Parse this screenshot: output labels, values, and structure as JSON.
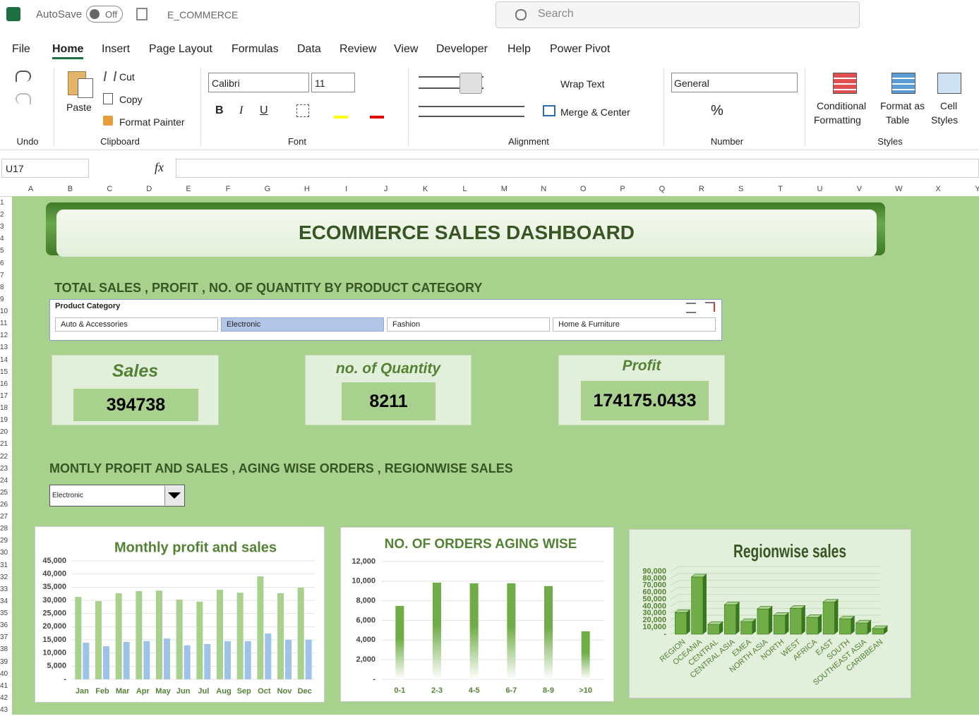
{
  "titlebar": {
    "autosave": "AutoSave",
    "autosave_state": "Off",
    "filename": "E_COMMERCE",
    "search": "Search"
  },
  "tabs": [
    "File",
    "Home",
    "Insert",
    "Page Layout",
    "Formulas",
    "Data",
    "Review",
    "View",
    "Developer",
    "Help",
    "Power Pivot"
  ],
  "ribbon": {
    "groups": [
      "Undo",
      "Clipboard",
      "Font",
      "Alignment",
      "Number",
      "Styles"
    ],
    "buttons": {
      "paste": "Paste",
      "cut": "Cut",
      "copy": "Copy",
      "format_painter": "Format Painter",
      "font": "Calibri",
      "font_size": "11",
      "bold": "B",
      "italic": "I",
      "underline": "U",
      "wrap_text": "Wrap Text",
      "merge_center": "Merge & Center",
      "number_format": "General",
      "percent": "%",
      "conditional_formatting": [
        "Conditional",
        "Formatting"
      ],
      "format_as_table": [
        "Format as",
        "Table"
      ],
      "cell_styles": [
        "Cell",
        "Styles"
      ]
    }
  },
  "formula_bar": {
    "name_box": "U17",
    "fx": "fx"
  },
  "columns": [
    "A",
    "B",
    "C",
    "D",
    "E",
    "F",
    "G",
    "H",
    "I",
    "J",
    "K",
    "L",
    "M",
    "N",
    "O",
    "P",
    "Q",
    "R",
    "S",
    "T",
    "U",
    "V",
    "W",
    "X",
    "Y"
  ],
  "rows": [
    "1",
    "2",
    "3",
    "4",
    "5",
    "6",
    "7",
    "8",
    "9",
    "10",
    "11",
    "12",
    "13",
    "14",
    "15",
    "16",
    "17",
    "18",
    "19",
    "20",
    "21",
    "22",
    "23",
    "24",
    "25",
    "26",
    "27",
    "28",
    "29",
    "30",
    "31",
    "32",
    "33",
    "34",
    "35",
    "36",
    "37",
    "38",
    "39",
    "40",
    "41",
    "42",
    "43"
  ],
  "dashboard": {
    "title": "ECOMMERCE SALES DASHBOARD",
    "section1": "TOTAL SALES , PROFIT , NO. OF QUANTITY BY PRODUCT CATEGORY",
    "slicer": {
      "title": "Product Category",
      "items": [
        "Auto & Accessories",
        "Electronic",
        "Fashion",
        "Home & Furniture"
      ],
      "selected_index": 1
    },
    "kpis": [
      {
        "label": "Sales",
        "value": 394738
      },
      {
        "label": "no. of Quantity",
        "value": 8211
      },
      {
        "label": "Profit",
        "value": 174175.0433
      }
    ],
    "section2": "MONTLY PROFIT AND SALES , AGING WISE ORDERS , REGIONWISE SALES",
    "filter": {
      "value": "Electronic"
    },
    "charts": [
      {
        "type": "bar",
        "title": "Monthly profit and sales",
        "categories": [
          "Jan",
          "Feb",
          "Mar",
          "Apr",
          "May",
          "Jun",
          "Jul",
          "Aug",
          "Sep",
          "Oct",
          "Nov",
          "Dec"
        ],
        "series": [
          {
            "color": "#a9d18e",
            "values": [
              31300,
              29700,
              32700,
              33500,
              33700,
              30300,
              29500,
              34000,
              32900,
              39100,
              32700,
              34800
            ]
          },
          {
            "color": "#9dc3e6",
            "values": [
              13900,
              12600,
              14200,
              14500,
              15500,
              12900,
              13400,
              14500,
              14500,
              17400,
              15000,
              15000
            ]
          }
        ],
        "ylim": [
          0,
          45000
        ],
        "yticks": [
          {
            "value": 0,
            "label": "-"
          },
          {
            "value": 5000,
            "label": "5,000"
          },
          {
            "value": 10000,
            "label": "10,000"
          },
          {
            "value": 15000,
            "label": "15,000"
          },
          {
            "value": 20000,
            "label": "20,000"
          },
          {
            "value": 25000,
            "label": "25,000"
          },
          {
            "value": 30000,
            "label": "30,000"
          },
          {
            "value": 35000,
            "label": "35,000"
          },
          {
            "value": 40000,
            "label": "40,000"
          },
          {
            "value": 45000,
            "label": "45,000"
          }
        ],
        "grid": true
      },
      {
        "type": "bar",
        "title": "NO. OF ORDERS AGING WISE",
        "categories": [
          "0-1",
          "2-3",
          "4-5",
          "6-7",
          "8-9",
          ">10"
        ],
        "values": [
          7480,
          9850,
          9780,
          9780,
          9500,
          4890
        ],
        "color": "#70ad47",
        "gradient": true,
        "ylim": [
          0,
          12000
        ],
        "yticks": [
          {
            "value": 0,
            "label": "-"
          },
          {
            "value": 2000,
            "label": "2,000"
          },
          {
            "value": 4000,
            "label": "4,000"
          },
          {
            "value": 6000,
            "label": "6,000"
          },
          {
            "value": 8000,
            "label": "8,000"
          },
          {
            "value": 10000,
            "label": "10,000"
          },
          {
            "value": 12000,
            "label": "12,000"
          }
        ],
        "grid": true
      },
      {
        "type": "bar3d",
        "title": "Regionwise sales",
        "categories": [
          "REGION",
          "OCEANIA",
          "CENTRAL",
          "CENTRAL ASIA",
          "EMEA",
          "NORTH ASIA",
          "NORTH",
          "WEST",
          "AFRICA",
          "EAST",
          "SOUTH",
          "SOUTHEAST ASIA",
          "CARIBBEAN"
        ],
        "values": [
          31000,
          82000,
          14000,
          42000,
          18000,
          36000,
          27000,
          37000,
          24000,
          46000,
          22000,
          16000,
          8000
        ],
        "color": "#70ad47",
        "ylim": [
          0,
          90000
        ],
        "yticks": [
          {
            "value": 0,
            "label": "-"
          },
          {
            "value": 10000,
            "label": "10,000"
          },
          {
            "value": 20000,
            "label": "20,000"
          },
          {
            "value": 30000,
            "label": "30,000"
          },
          {
            "value": 40000,
            "label": "40,000"
          },
          {
            "value": 50000,
            "label": "50,000"
          },
          {
            "value": 60000,
            "label": "60,000"
          },
          {
            "value": 70000,
            "label": "70,000"
          },
          {
            "value": 80000,
            "label": "80,000"
          },
          {
            "value": 90000,
            "label": "90,000"
          }
        ],
        "grid": true
      }
    ]
  }
}
